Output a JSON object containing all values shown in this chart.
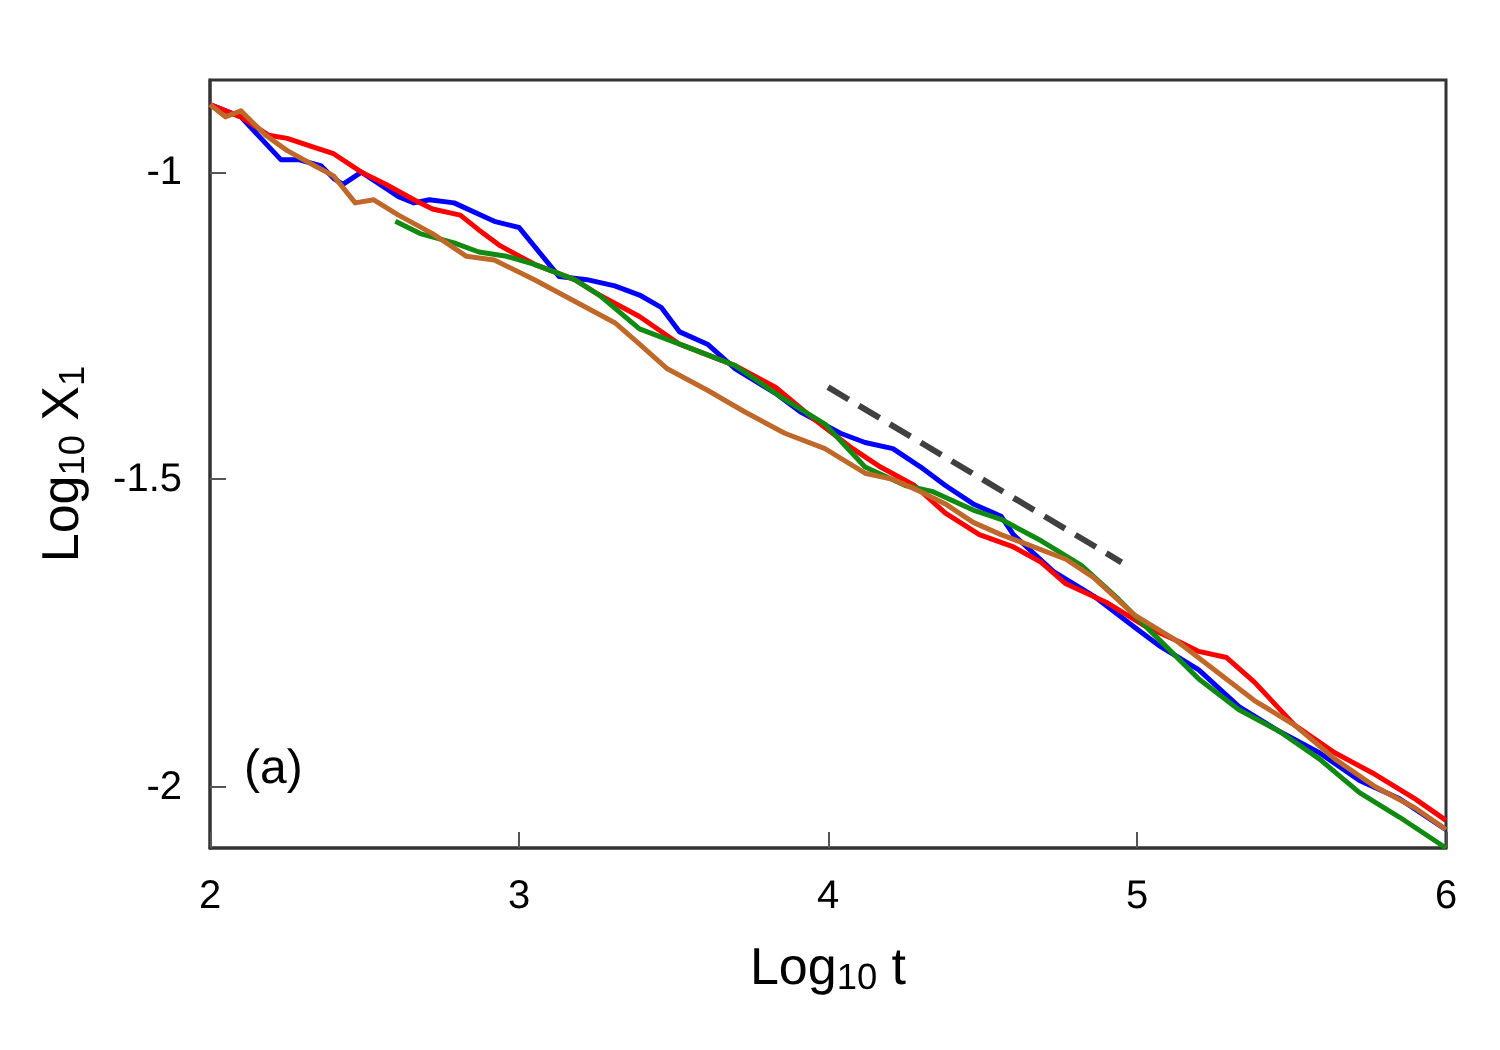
{
  "chart_data": {
    "type": "line",
    "xlabel": "Log$_{10}$ t",
    "ylabel": "Log$_{10}$ X$_{1}$",
    "xlim": [
      2,
      6
    ],
    "ylim": [
      -2.1,
      -0.85
    ],
    "xticks": [
      2,
      3,
      4,
      5,
      6
    ],
    "yticks": [
      -2,
      -1.5,
      -1
    ],
    "grid": false,
    "marker": "none",
    "annotations": [
      "(a)"
    ],
    "series": [
      {
        "color": "#0000ff",
        "x": [
          2,
          2.1,
          2.23,
          2.29,
          2.36,
          2.4,
          2.43,
          2.49,
          2.55,
          2.61,
          2.66,
          2.71,
          2.79,
          2.92,
          3.0,
          3.13,
          3.22,
          3.31,
          3.39,
          3.46,
          3.52,
          3.61,
          3.7,
          3.83,
          3.91,
          4.04,
          4.12,
          4.21,
          4.3,
          4.38,
          4.47,
          4.56,
          4.6,
          4.73,
          4.86,
          4.99,
          5.07,
          5.2,
          5.33,
          5.46,
          5.59,
          5.72,
          5.85,
          6.0
        ],
        "values": [
          -0.89,
          -0.91,
          -0.98,
          -0.98,
          -0.99,
          -1.01,
          -1.02,
          -1.0,
          -1.02,
          -1.04,
          -1.05,
          -1.045,
          -1.05,
          -1.08,
          -1.09,
          -1.17,
          -1.175,
          -1.185,
          -1.2,
          -1.22,
          -1.26,
          -1.28,
          -1.32,
          -1.36,
          -1.39,
          -1.425,
          -1.44,
          -1.45,
          -1.48,
          -1.51,
          -1.54,
          -1.56,
          -1.59,
          -1.65,
          -1.69,
          -1.74,
          -1.77,
          -1.81,
          -1.87,
          -1.91,
          -1.945,
          -1.99,
          -2.02,
          -2.07
        ]
      },
      {
        "color": "#ff0000",
        "x": [
          2,
          2.1,
          2.19,
          2.25,
          2.34,
          2.4,
          2.49,
          2.57,
          2.66,
          2.72,
          2.81,
          2.87,
          2.94,
          3.05,
          3.18,
          3.26,
          3.39,
          3.52,
          3.7,
          3.83,
          3.95,
          4.08,
          4.17,
          4.28,
          4.38,
          4.49,
          4.6,
          4.69,
          4.77,
          4.9,
          5.03,
          5.14,
          5.2,
          5.29,
          5.38,
          5.51,
          5.64,
          5.77,
          5.9,
          6.0
        ],
        "values": [
          -0.89,
          -0.91,
          -0.94,
          -0.945,
          -0.96,
          -0.97,
          -1.0,
          -1.02,
          -1.045,
          -1.06,
          -1.07,
          -1.094,
          -1.12,
          -1.15,
          -1.175,
          -1.2,
          -1.235,
          -1.28,
          -1.315,
          -1.35,
          -1.4,
          -1.45,
          -1.48,
          -1.51,
          -1.555,
          -1.59,
          -1.61,
          -1.635,
          -1.67,
          -1.7,
          -1.74,
          -1.765,
          -1.78,
          -1.79,
          -1.83,
          -1.9,
          -1.945,
          -1.98,
          -2.02,
          -2.055
        ]
      },
      {
        "color": "#108a10",
        "x": [
          2.6,
          2.68,
          2.79,
          2.87,
          2.96,
          3.05,
          3.18,
          3.26,
          3.39,
          3.52,
          3.7,
          3.86,
          3.99,
          4.12,
          4.25,
          4.34,
          4.47,
          4.56,
          4.69,
          4.82,
          4.94,
          5.07,
          5.2,
          5.33,
          5.46,
          5.59,
          5.72,
          5.85,
          6.0
        ],
        "values": [
          -1.08,
          -1.1,
          -1.115,
          -1.13,
          -1.137,
          -1.15,
          -1.175,
          -1.2,
          -1.255,
          -1.28,
          -1.315,
          -1.37,
          -1.41,
          -1.48,
          -1.51,
          -1.52,
          -1.55,
          -1.565,
          -1.6,
          -1.64,
          -1.695,
          -1.76,
          -1.825,
          -1.875,
          -1.91,
          -1.955,
          -2.01,
          -2.05,
          -2.1
        ]
      },
      {
        "color": "#c0682a",
        "x": [
          2,
          2.05,
          2.1,
          2.18,
          2.25,
          2.34,
          2.4,
          2.47,
          2.53,
          2.61,
          2.72,
          2.83,
          2.92,
          3.05,
          3.18,
          3.31,
          3.39,
          3.48,
          3.61,
          3.73,
          3.86,
          3.99,
          4.12,
          4.21,
          4.3,
          4.38,
          4.47,
          4.56,
          4.64,
          4.77,
          4.86,
          4.99,
          5.12,
          5.25,
          5.38,
          5.51,
          5.64,
          5.77,
          5.9,
          6.0
        ],
        "values": [
          -0.89,
          -0.91,
          -0.9,
          -0.94,
          -0.965,
          -0.99,
          -1.006,
          -1.05,
          -1.045,
          -1.07,
          -1.1,
          -1.137,
          -1.143,
          -1.175,
          -1.21,
          -1.245,
          -1.28,
          -1.32,
          -1.355,
          -1.39,
          -1.425,
          -1.45,
          -1.49,
          -1.5,
          -1.52,
          -1.54,
          -1.57,
          -1.59,
          -1.605,
          -1.63,
          -1.66,
          -1.72,
          -1.76,
          -1.81,
          -1.86,
          -1.9,
          -1.955,
          -2.0,
          -2.035,
          -2.07
        ]
      },
      {
        "color": "#404040",
        "line_style": "dashed",
        "x": [
          4,
          4.95
        ],
        "values": [
          -1.35,
          -1.635
        ]
      }
    ]
  }
}
